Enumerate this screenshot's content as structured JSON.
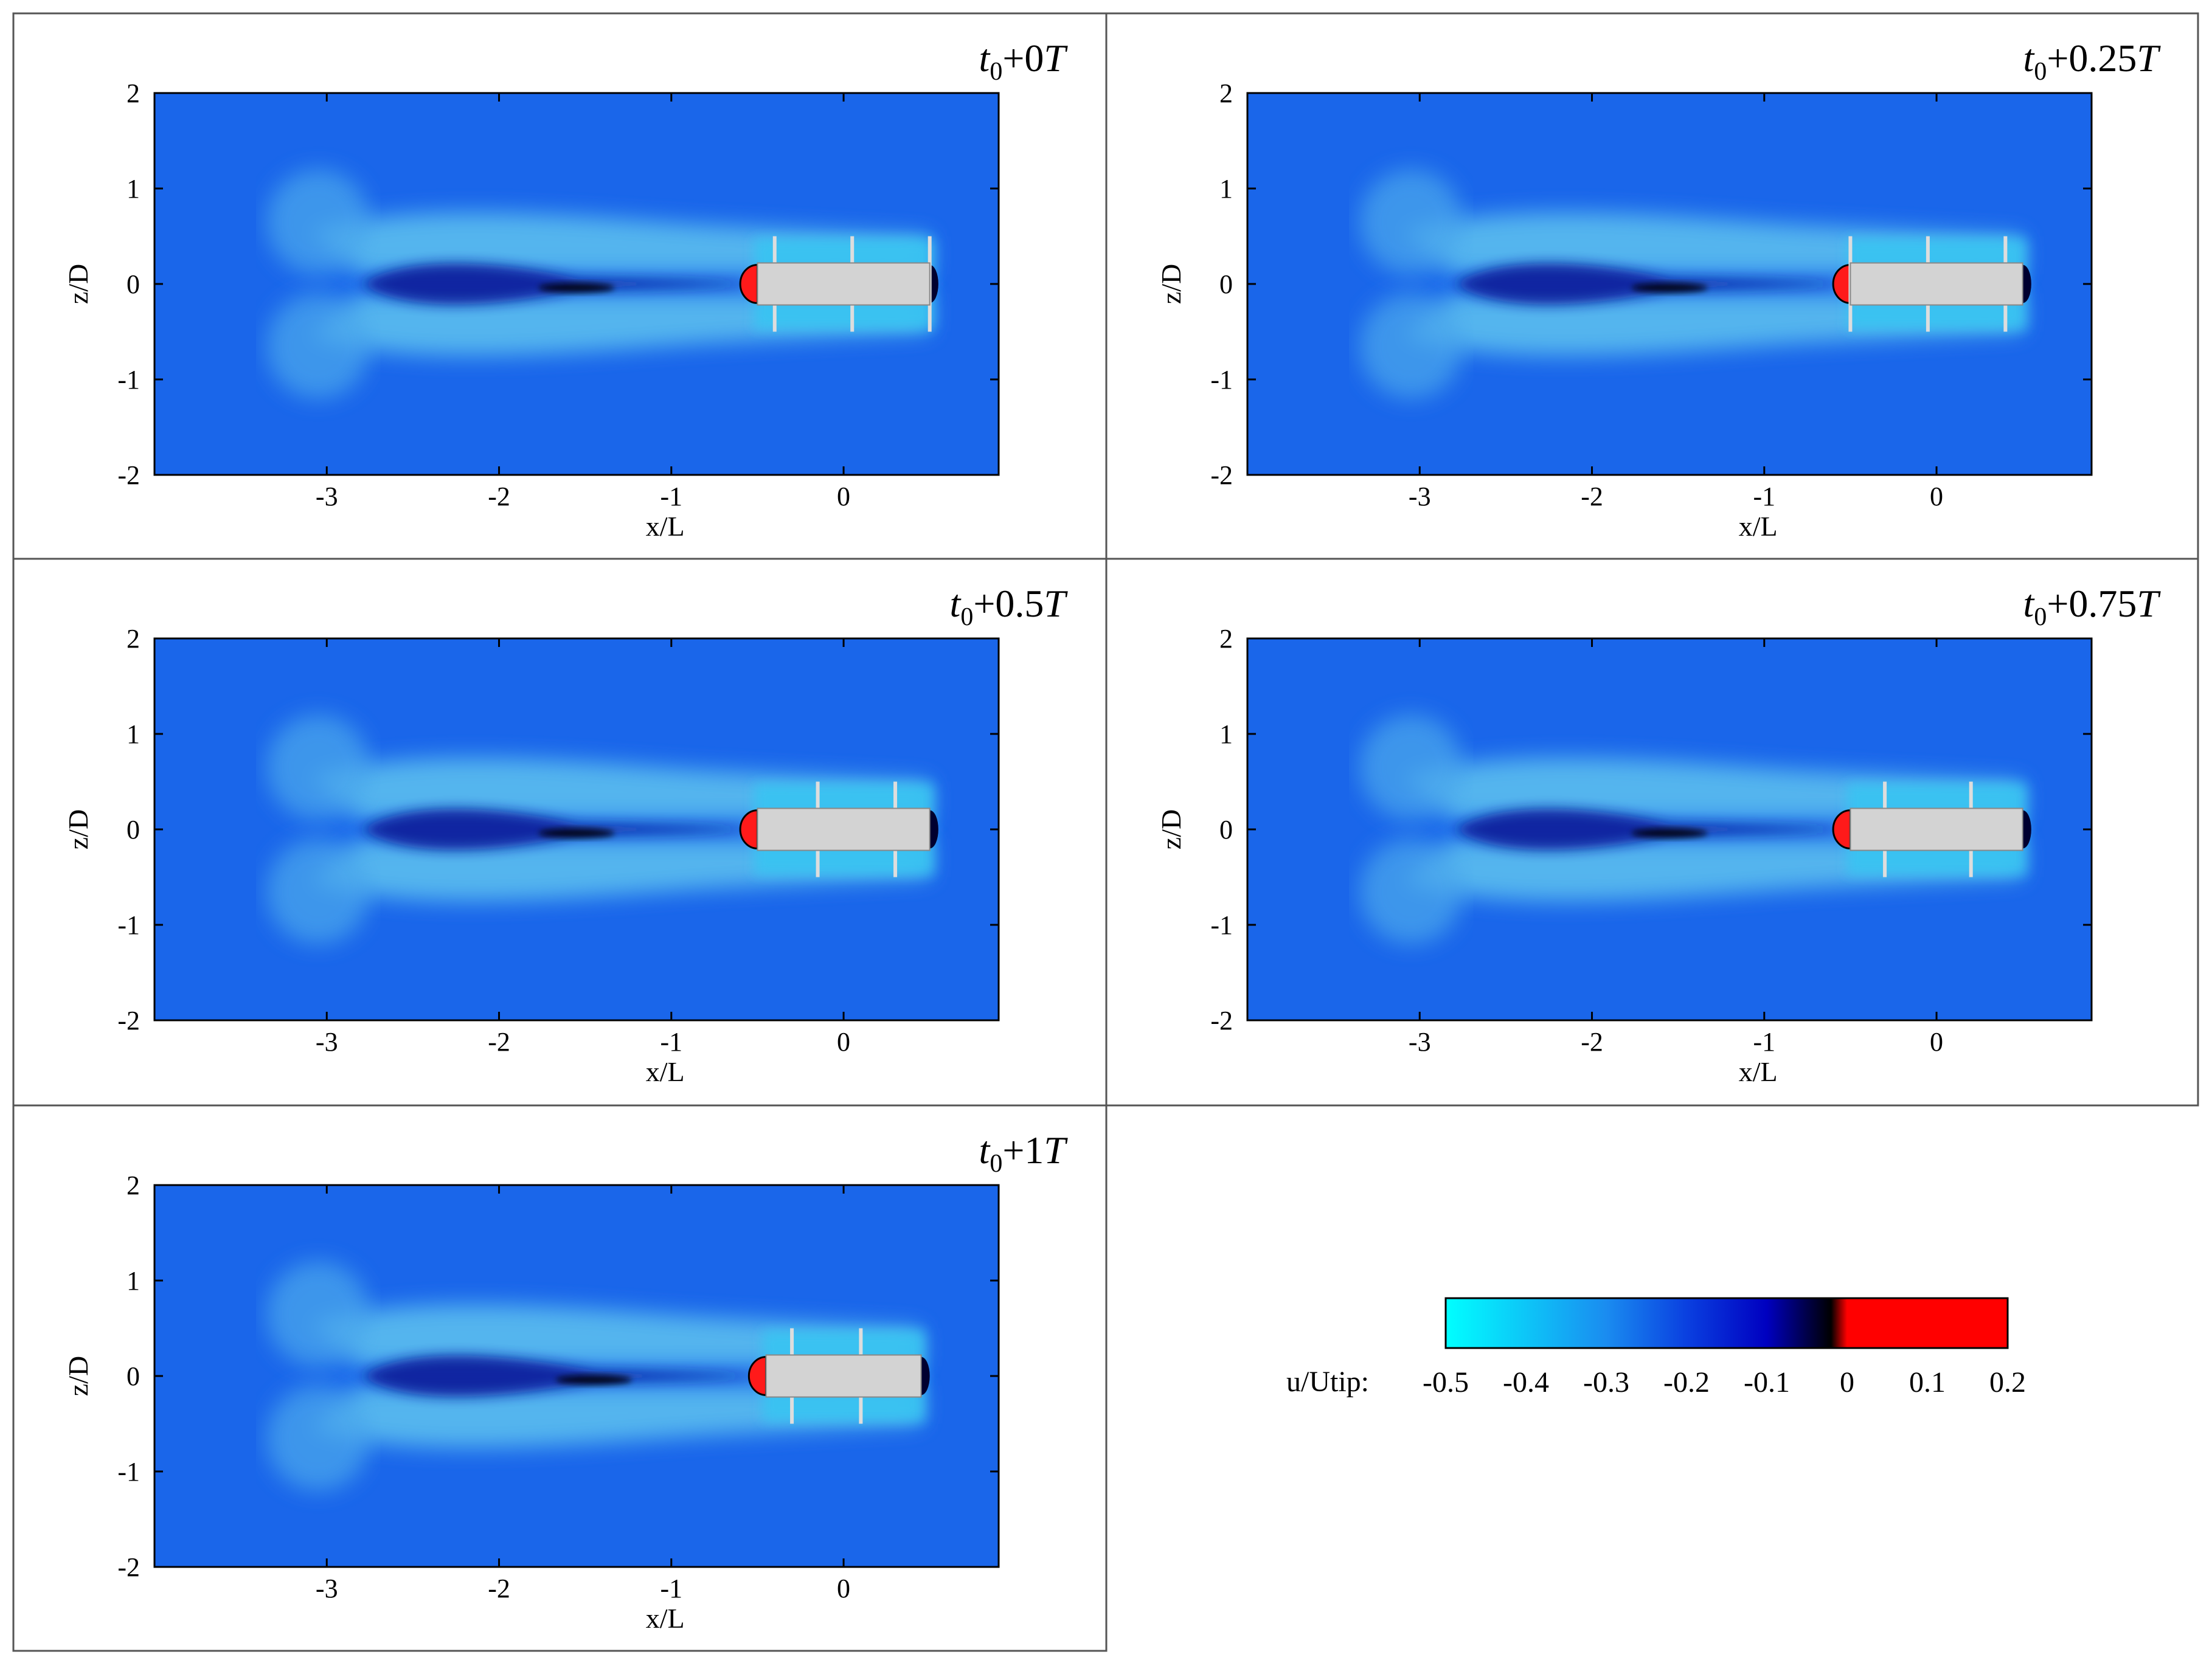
{
  "chart_data": [
    {
      "type": "heatmap",
      "title": {
        "base": "t",
        "sub": "0",
        "offset": "+0",
        "unit": "T"
      },
      "xlabel": "x/L",
      "ylabel": "z/D",
      "xlim": [
        -4,
        0.9
      ],
      "ylim": [
        -2,
        2
      ],
      "xticks": [
        -3,
        -2,
        -1,
        0
      ],
      "yticks": [
        -2,
        -1,
        0,
        1,
        2
      ],
      "body": {
        "x0": -0.5,
        "x1": 0.5,
        "z0": -0.22,
        "z1": 0.22
      },
      "struts_x": [
        -0.4,
        0.05,
        0.5
      ],
      "wake_core_x": -1.55
    },
    {
      "type": "heatmap",
      "title": {
        "base": "t",
        "sub": "0",
        "offset": "+0.25",
        "unit": "T"
      },
      "xlabel": "x/L",
      "ylabel": "z/D",
      "xlim": [
        -4,
        0.9
      ],
      "ylim": [
        -2,
        2
      ],
      "xticks": [
        -3,
        -2,
        -1,
        0
      ],
      "yticks": [
        -2,
        -1,
        0,
        1,
        2
      ],
      "body": {
        "x0": -0.5,
        "x1": 0.5,
        "z0": -0.22,
        "z1": 0.22
      },
      "struts_x": [
        -0.5,
        -0.05,
        0.4
      ],
      "wake_core_x": -1.55
    },
    {
      "type": "heatmap",
      "title": {
        "base": "t",
        "sub": "0",
        "offset": "+0.5",
        "unit": "T"
      },
      "xlabel": "x/L",
      "ylabel": "z/D",
      "xlim": [
        -4,
        0.9
      ],
      "ylim": [
        -2,
        2
      ],
      "xticks": [
        -3,
        -2,
        -1,
        0
      ],
      "yticks": [
        -2,
        -1,
        0,
        1,
        2
      ],
      "body": {
        "x0": -0.5,
        "x1": 0.5,
        "z0": -0.22,
        "z1": 0.22
      },
      "struts_x": [
        -0.15,
        0.3
      ],
      "wake_core_x": -1.55
    },
    {
      "type": "heatmap",
      "title": {
        "base": "t",
        "sub": "0",
        "offset": "+0.75",
        "unit": "T"
      },
      "xlabel": "x/L",
      "ylabel": "z/D",
      "xlim": [
        -4,
        0.9
      ],
      "ylim": [
        -2,
        2
      ],
      "xticks": [
        -3,
        -2,
        -1,
        0
      ],
      "yticks": [
        -2,
        -1,
        0,
        1,
        2
      ],
      "body": {
        "x0": -0.5,
        "x1": 0.5,
        "z0": -0.22,
        "z1": 0.22
      },
      "struts_x": [
        -0.3,
        0.2
      ],
      "wake_core_x": -1.55
    },
    {
      "type": "heatmap",
      "title": {
        "base": "t",
        "sub": "0",
        "offset": "+1",
        "unit": "T"
      },
      "xlabel": "x/L",
      "ylabel": "z/D",
      "xlim": [
        -4,
        0.9
      ],
      "ylim": [
        -2,
        2
      ],
      "xticks": [
        -3,
        -2,
        -1,
        0
      ],
      "yticks": [
        -2,
        -1,
        0,
        1,
        2
      ],
      "body": {
        "x0": -0.45,
        "x1": 0.45,
        "z0": -0.22,
        "z1": 0.22
      },
      "struts_x": [
        -0.3,
        0.1
      ],
      "wake_core_x": -1.45
    }
  ],
  "colorbar": {
    "label": "u/Utip:",
    "ticks": [
      "-0.5",
      "-0.4",
      "-0.3",
      "-0.2",
      "-0.1",
      "0",
      "0.1",
      "0.2"
    ],
    "range": [
      -0.5,
      0.2
    ],
    "stops": [
      {
        "value": -0.5,
        "color": "#00ffff"
      },
      {
        "value": -0.3,
        "color": "#1a8cf0"
      },
      {
        "value": -0.2,
        "color": "#0a40e0"
      },
      {
        "value": -0.1,
        "color": "#0000c0"
      },
      {
        "value": -0.02,
        "color": "#000000"
      },
      {
        "value": 0.0,
        "color": "#ff0000"
      },
      {
        "value": 0.2,
        "color": "#ff0000"
      }
    ]
  },
  "colors": {
    "background_flow": "#1a66ea",
    "wake_light": "#5fc3ef",
    "wake_dark": "#0a1a9a",
    "body": "#d3d3d3",
    "recirculation": "#ff1a1a"
  }
}
